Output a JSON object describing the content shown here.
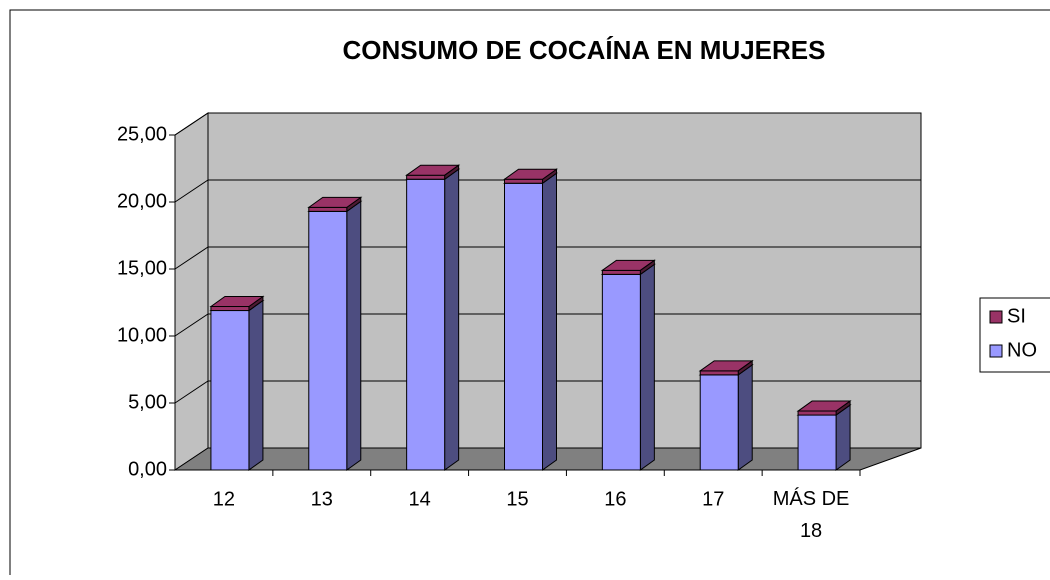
{
  "chart_data": {
    "type": "bar3d_stacked",
    "title": "CONSUMO DE COCAÍNA EN MUJERES",
    "categories": [
      "12",
      "13",
      "14",
      "15",
      "16",
      "17",
      "MÁS DE 18"
    ],
    "series": [
      {
        "name": "NO",
        "color": "#9999ff",
        "values": [
          11.9,
          19.3,
          21.7,
          21.4,
          14.6,
          7.1,
          4.1
        ]
      },
      {
        "name": "SI",
        "color": "#993366",
        "values": [
          0.3,
          0.3,
          0.3,
          0.3,
          0.3,
          0.3,
          0.3
        ]
      }
    ],
    "ylim": [
      0,
      25
    ],
    "yticks": [
      {
        "value": 0,
        "label": "0,00"
      },
      {
        "value": 5,
        "label": "5,00"
      },
      {
        "value": 10,
        "label": "10,00"
      },
      {
        "value": 15,
        "label": "15,00"
      },
      {
        "value": 20,
        "label": "20,00"
      },
      {
        "value": 25,
        "label": "25,00"
      }
    ],
    "grid": true,
    "legend": "right"
  }
}
